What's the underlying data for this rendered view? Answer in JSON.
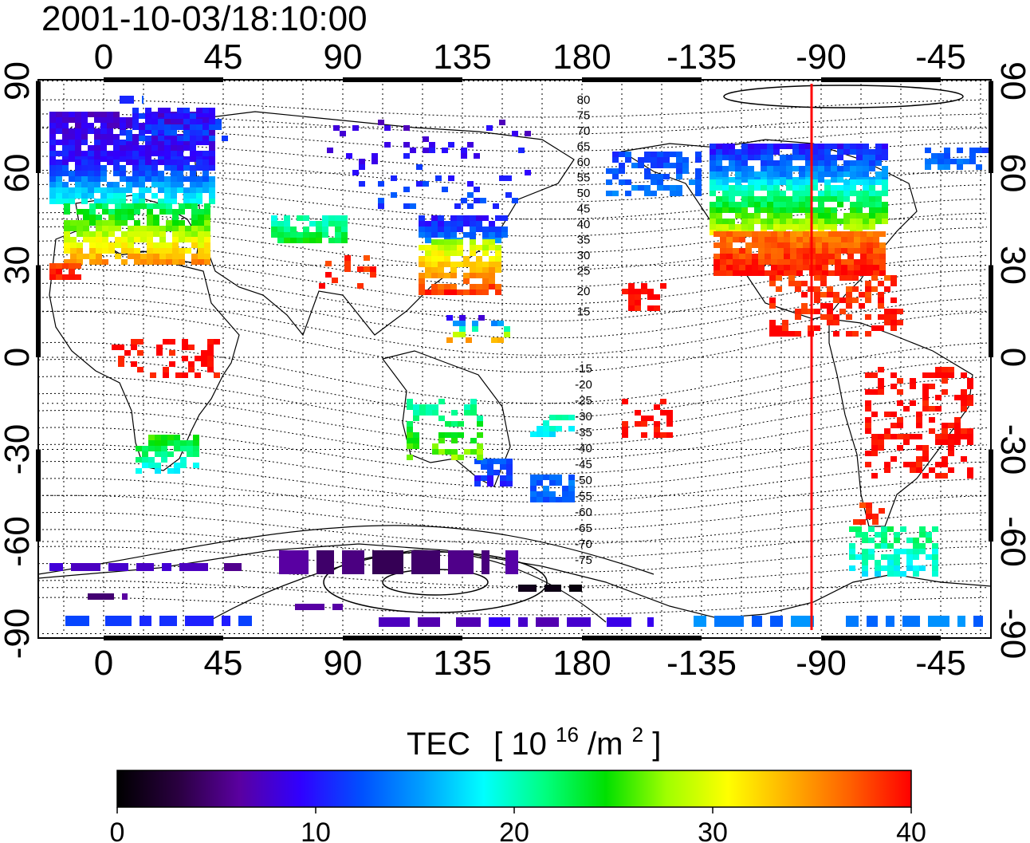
{
  "title": "2001-10-03/18:10:00",
  "map": {
    "top_axis_labels": [
      "0",
      "45",
      "90",
      "135",
      "180",
      "-135",
      "-90",
      "-45"
    ],
    "bottom_axis_labels": [
      "0",
      "45",
      "90",
      "135",
      "180",
      "-135",
      "-90",
      "-45"
    ],
    "left_axis_labels": [
      "90",
      "60",
      "30",
      "0",
      "-30",
      "-60",
      "-90"
    ],
    "right_axis_labels": [
      "90",
      "60",
      "30",
      "0",
      "-30",
      "-60",
      "-90"
    ],
    "marker_line": {
      "longitude": -90,
      "color": "#ff0000"
    },
    "contour_labels": {
      "north": [
        "80",
        "75",
        "70",
        "65",
        "60",
        "55",
        "50",
        "45",
        "40",
        "35",
        "30",
        "25",
        "20",
        "15"
      ],
      "south": [
        "-15",
        "-20",
        "-25",
        "-30",
        "-35",
        "-40",
        "-45",
        "-50",
        "-55",
        "-60",
        "-65",
        "-70",
        "-75"
      ]
    }
  },
  "colorbar": {
    "title": "TEC",
    "unit_base": "10",
    "unit_exp": "16",
    "unit_mid": "/m",
    "unit_exp2": "2",
    "unit_open": "[",
    "unit_close": "]",
    "min": 0,
    "max": 40,
    "ticks": [
      "0",
      "10",
      "20",
      "30",
      "40"
    ],
    "colors": [
      "#000000",
      "#2a0040",
      "#5a00a0",
      "#3000ff",
      "#0050ff",
      "#00a0ff",
      "#00ffff",
      "#00ff80",
      "#00e000",
      "#a0ff00",
      "#ffff00",
      "#ffb000",
      "#ff6000",
      "#ff0000"
    ]
  }
}
